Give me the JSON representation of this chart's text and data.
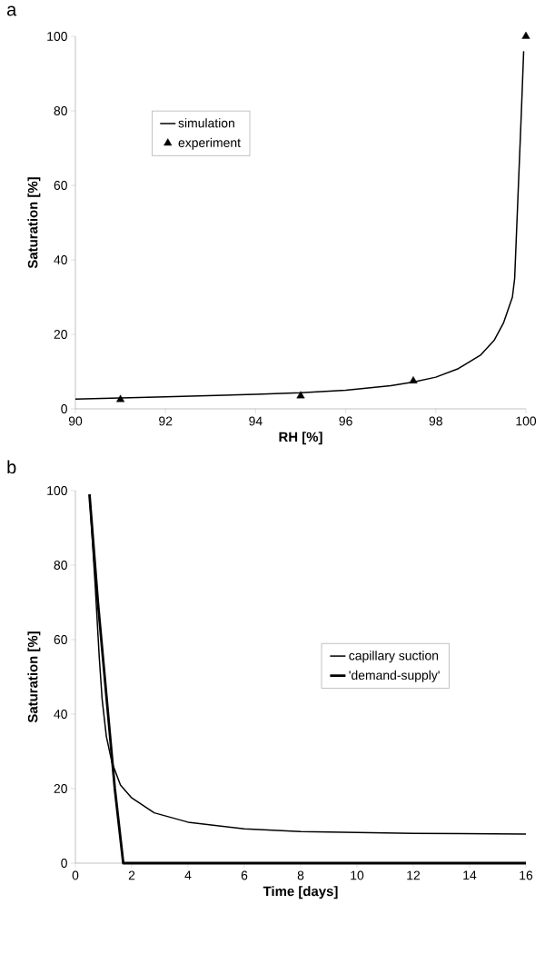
{
  "chart_data": [
    {
      "type": "line",
      "title": "a",
      "xlabel": "RH [%]",
      "ylabel": "Saturation [%]",
      "xlim": [
        90,
        100
      ],
      "xticks": [
        90,
        92,
        94,
        96,
        98,
        100
      ],
      "ylim": [
        0,
        100
      ],
      "yticks": [
        0,
        20,
        40,
        60,
        80,
        100
      ],
      "grid": false,
      "legend": "top left",
      "series": [
        {
          "name": "simulation",
          "marker": "none",
          "color": "#000000",
          "x": [
            90,
            92,
            94,
            95,
            96,
            97,
            97.5,
            98,
            98.5,
            99,
            99.3,
            99.5,
            99.7,
            99.75,
            99.8,
            99.9,
            99.95
          ],
          "values": [
            2.6,
            3.2,
            3.9,
            4.3,
            5,
            6.2,
            7.2,
            8.5,
            10.8,
            14.5,
            18.5,
            23,
            30,
            35,
            50,
            80,
            96
          ]
        },
        {
          "name": "experiment",
          "type": "scatter",
          "marker": "triangle",
          "color": "#000000",
          "x": [
            91,
            95,
            97.5,
            100
          ],
          "values": [
            2.5,
            3.5,
            7.5,
            100
          ]
        }
      ]
    },
    {
      "type": "line",
      "title": "b",
      "xlabel": "Time [days]",
      "ylabel": "Saturation [%]",
      "xlim": [
        0,
        16
      ],
      "xticks": [
        0,
        2,
        4,
        6,
        8,
        10,
        12,
        14,
        16
      ],
      "ylim": [
        0,
        100
      ],
      "yticks": [
        0,
        20,
        40,
        60,
        80,
        100
      ],
      "grid": false,
      "legend": "right",
      "series": [
        {
          "name": "capillary suction",
          "marker": "none",
          "color": "#000000",
          "x": [
            0.5,
            0.7,
            0.85,
            0.95,
            1.1,
            1.3,
            1.6,
            2,
            2.8,
            4,
            6,
            8,
            10,
            12,
            16
          ],
          "values": [
            99,
            75,
            55,
            44,
            34,
            27,
            21,
            17.5,
            13.5,
            11,
            9.2,
            8.5,
            8.2,
            8,
            7.8
          ]
        },
        {
          "name": "'demand-supply'",
          "marker": "none",
          "color": "#000000",
          "x": [
            0.5,
            0.8,
            1.1,
            1.4,
            1.7,
            16
          ],
          "values": [
            99,
            70,
            45,
            20,
            0,
            0
          ]
        }
      ]
    }
  ]
}
